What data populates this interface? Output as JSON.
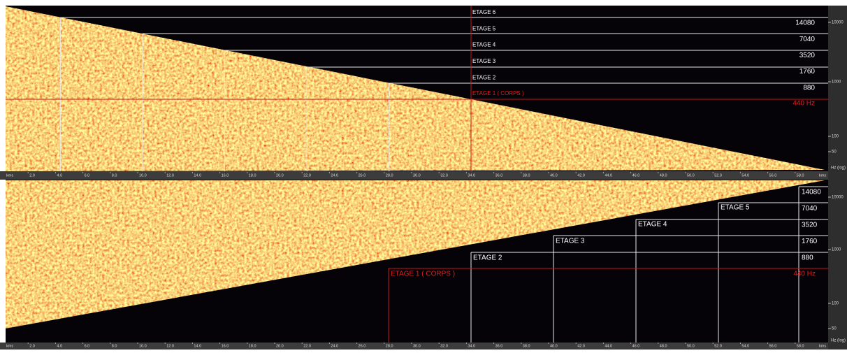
{
  "top": {
    "stages": [
      "ETAGE 6",
      "ETAGE 5",
      "ETAGE 4",
      "ETAGE 3",
      "ETAGE 2"
    ],
    "frequencies": [
      "14080",
      "7040",
      "3520",
      "1760",
      "880"
    ],
    "body_stage": "ETAGE 1 ( CORPS )",
    "base_frequency": "440 Hz"
  },
  "bottom": {
    "stages": [
      "ETAGE 2",
      "ETAGE 3",
      "ETAGE 4",
      "ETAGE 5"
    ],
    "frequencies": [
      "14080",
      "7040",
      "3520",
      "1760",
      "880"
    ],
    "body_stage": "ETAGE 1 ( CORPS )",
    "base_frequency": "440 Hz"
  },
  "time_axis": {
    "unit": "kms",
    "ticks": [
      "2.0",
      "4.0",
      "6.0",
      "8.0",
      "10.0",
      "12.0",
      "14.0",
      "16.0",
      "18.0",
      "20.0",
      "22.0",
      "24.0",
      "26.0",
      "28.0",
      "30.0",
      "32.0",
      "34.0",
      "36.0",
      "38.0",
      "40.0",
      "42.0",
      "44.0",
      "46.0",
      "48.0",
      "50.0",
      "52.0",
      "54.0",
      "56.0",
      "58.0"
    ]
  },
  "frequency_axis": {
    "ticks": [
      "10000",
      "1000",
      "100",
      "50"
    ],
    "unit": "Hz (log)"
  }
}
